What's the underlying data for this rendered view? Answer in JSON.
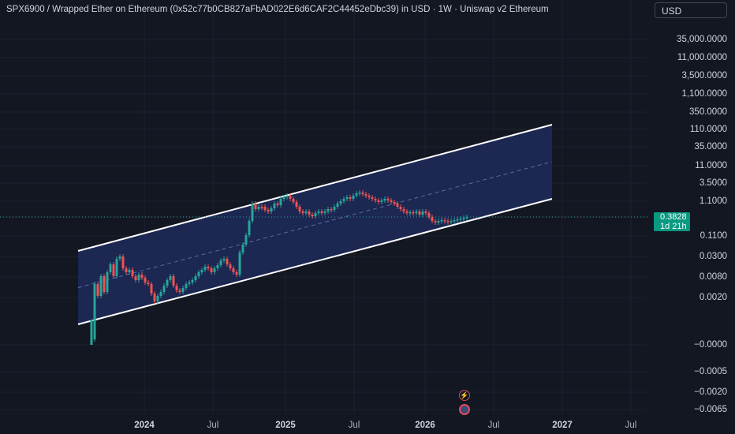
{
  "header": {
    "title": "SPX6900 / Wrapped Ether on Ethereum (0x52c77b0CB827aFbAD022E6d6CAF2C44452eDbc39) in USD · 1W · Uniswap v2 Ethereum",
    "currency_button": "USD"
  },
  "last_price": {
    "value": "0.3828",
    "countdown": "1d 21h"
  },
  "colors": {
    "background": "#131722",
    "up": "#26a69a",
    "down": "#ef5350",
    "channel_fill": "#1e2a5a",
    "channel_line": "#ffffff",
    "midline": "#5b6aa8",
    "price_tag": "#089981"
  },
  "events": [
    {
      "icon": "lightning-icon"
    },
    {
      "icon": "us-flag-icon"
    }
  ],
  "chart_data": {
    "type": "candlestick",
    "y_scale": "log-like (signed)",
    "y_ticks": [
      "35,000.0000",
      "11,000.0000",
      "3,500.0000",
      "1,100.0000",
      "350.0000",
      "110.0000",
      "35.0000",
      "11.0000",
      "3.5000",
      "1.1000",
      "0.3828",
      "0.1100",
      "0.0300",
      "0.0080",
      "0.0020",
      "−0.0000",
      "−0.0005",
      "−0.0020",
      "−0.0065"
    ],
    "x_ticks": [
      "2024",
      "Jul",
      "2025",
      "Jul",
      "2026",
      "Jul",
      "2027",
      "Jul"
    ],
    "x_tick_years": [
      "2024",
      "2025",
      "2026",
      "2027"
    ],
    "annotations": [
      "parallel channel (upper line, midline, lower line)"
    ],
    "series": []
  }
}
